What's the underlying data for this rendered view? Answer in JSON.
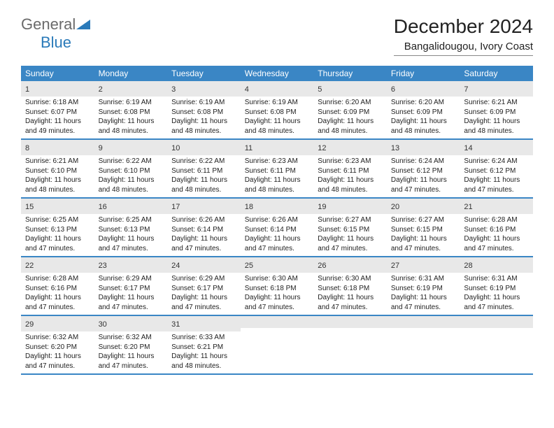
{
  "logo": {
    "general": "General",
    "blue": "Blue"
  },
  "title": "December 2024",
  "location": "Bangalidougou, Ivory Coast",
  "colors": {
    "header_bg": "#3a86c5",
    "daynum_bg": "#e8e8e8",
    "page_bg": "#ffffff",
    "text": "#222222",
    "logo_gray": "#6a6a6a",
    "logo_blue": "#2a7ab9"
  },
  "daysOfWeek": [
    "Sunday",
    "Monday",
    "Tuesday",
    "Wednesday",
    "Thursday",
    "Friday",
    "Saturday"
  ],
  "weeks": [
    [
      {
        "n": "1",
        "sr": "6:18 AM",
        "ss": "6:07 PM",
        "dl": "11 hours and 49 minutes."
      },
      {
        "n": "2",
        "sr": "6:19 AM",
        "ss": "6:08 PM",
        "dl": "11 hours and 48 minutes."
      },
      {
        "n": "3",
        "sr": "6:19 AM",
        "ss": "6:08 PM",
        "dl": "11 hours and 48 minutes."
      },
      {
        "n": "4",
        "sr": "6:19 AM",
        "ss": "6:08 PM",
        "dl": "11 hours and 48 minutes."
      },
      {
        "n": "5",
        "sr": "6:20 AM",
        "ss": "6:09 PM",
        "dl": "11 hours and 48 minutes."
      },
      {
        "n": "6",
        "sr": "6:20 AM",
        "ss": "6:09 PM",
        "dl": "11 hours and 48 minutes."
      },
      {
        "n": "7",
        "sr": "6:21 AM",
        "ss": "6:09 PM",
        "dl": "11 hours and 48 minutes."
      }
    ],
    [
      {
        "n": "8",
        "sr": "6:21 AM",
        "ss": "6:10 PM",
        "dl": "11 hours and 48 minutes."
      },
      {
        "n": "9",
        "sr": "6:22 AM",
        "ss": "6:10 PM",
        "dl": "11 hours and 48 minutes."
      },
      {
        "n": "10",
        "sr": "6:22 AM",
        "ss": "6:11 PM",
        "dl": "11 hours and 48 minutes."
      },
      {
        "n": "11",
        "sr": "6:23 AM",
        "ss": "6:11 PM",
        "dl": "11 hours and 48 minutes."
      },
      {
        "n": "12",
        "sr": "6:23 AM",
        "ss": "6:11 PM",
        "dl": "11 hours and 48 minutes."
      },
      {
        "n": "13",
        "sr": "6:24 AM",
        "ss": "6:12 PM",
        "dl": "11 hours and 47 minutes."
      },
      {
        "n": "14",
        "sr": "6:24 AM",
        "ss": "6:12 PM",
        "dl": "11 hours and 47 minutes."
      }
    ],
    [
      {
        "n": "15",
        "sr": "6:25 AM",
        "ss": "6:13 PM",
        "dl": "11 hours and 47 minutes."
      },
      {
        "n": "16",
        "sr": "6:25 AM",
        "ss": "6:13 PM",
        "dl": "11 hours and 47 minutes."
      },
      {
        "n": "17",
        "sr": "6:26 AM",
        "ss": "6:14 PM",
        "dl": "11 hours and 47 minutes."
      },
      {
        "n": "18",
        "sr": "6:26 AM",
        "ss": "6:14 PM",
        "dl": "11 hours and 47 minutes."
      },
      {
        "n": "19",
        "sr": "6:27 AM",
        "ss": "6:15 PM",
        "dl": "11 hours and 47 minutes."
      },
      {
        "n": "20",
        "sr": "6:27 AM",
        "ss": "6:15 PM",
        "dl": "11 hours and 47 minutes."
      },
      {
        "n": "21",
        "sr": "6:28 AM",
        "ss": "6:16 PM",
        "dl": "11 hours and 47 minutes."
      }
    ],
    [
      {
        "n": "22",
        "sr": "6:28 AM",
        "ss": "6:16 PM",
        "dl": "11 hours and 47 minutes."
      },
      {
        "n": "23",
        "sr": "6:29 AM",
        "ss": "6:17 PM",
        "dl": "11 hours and 47 minutes."
      },
      {
        "n": "24",
        "sr": "6:29 AM",
        "ss": "6:17 PM",
        "dl": "11 hours and 47 minutes."
      },
      {
        "n": "25",
        "sr": "6:30 AM",
        "ss": "6:18 PM",
        "dl": "11 hours and 47 minutes."
      },
      {
        "n": "26",
        "sr": "6:30 AM",
        "ss": "6:18 PM",
        "dl": "11 hours and 47 minutes."
      },
      {
        "n": "27",
        "sr": "6:31 AM",
        "ss": "6:19 PM",
        "dl": "11 hours and 47 minutes."
      },
      {
        "n": "28",
        "sr": "6:31 AM",
        "ss": "6:19 PM",
        "dl": "11 hours and 47 minutes."
      }
    ],
    [
      {
        "n": "29",
        "sr": "6:32 AM",
        "ss": "6:20 PM",
        "dl": "11 hours and 47 minutes."
      },
      {
        "n": "30",
        "sr": "6:32 AM",
        "ss": "6:20 PM",
        "dl": "11 hours and 47 minutes."
      },
      {
        "n": "31",
        "sr": "6:33 AM",
        "ss": "6:21 PM",
        "dl": "11 hours and 48 minutes."
      },
      {
        "empty": true
      },
      {
        "empty": true
      },
      {
        "empty": true
      },
      {
        "empty": true
      }
    ]
  ],
  "labels": {
    "sunrise": "Sunrise: ",
    "sunset": "Sunset: ",
    "daylight": "Daylight: "
  }
}
